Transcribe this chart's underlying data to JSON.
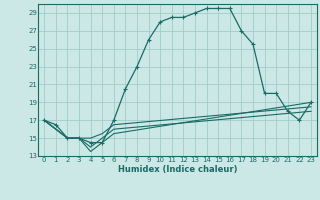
{
  "xlabel": "Humidex (Indice chaleur)",
  "xlim": [
    -0.5,
    23.5
  ],
  "ylim": [
    13,
    30
  ],
  "yticks": [
    13,
    15,
    17,
    19,
    21,
    23,
    25,
    27,
    29
  ],
  "xticks": [
    0,
    1,
    2,
    3,
    4,
    5,
    6,
    7,
    8,
    9,
    10,
    11,
    12,
    13,
    14,
    15,
    16,
    17,
    18,
    19,
    20,
    21,
    22,
    23
  ],
  "bg_color": "#cce8e6",
  "grid_color": "#a0ccca",
  "line_color": "#1a6b65",
  "curves": [
    {
      "x": [
        0,
        1,
        2,
        3,
        4,
        5,
        6,
        7,
        8,
        9,
        10,
        11,
        12,
        13,
        14,
        15,
        16,
        17,
        18,
        19,
        20,
        21,
        22,
        23
      ],
      "y": [
        17,
        16.5,
        15,
        15,
        14.5,
        14.5,
        17,
        20.5,
        23,
        26,
        28,
        28.5,
        28.5,
        29,
        29.5,
        29.5,
        29.5,
        27,
        25.5,
        20,
        20,
        18,
        17,
        19
      ]
    },
    {
      "x": [
        0,
        2,
        3,
        4,
        5,
        6,
        23
      ],
      "y": [
        17,
        15,
        15,
        13.5,
        14.5,
        15.5,
        19
      ]
    },
    {
      "x": [
        0,
        2,
        3,
        4,
        5,
        6,
        23
      ],
      "y": [
        17,
        15,
        15,
        14,
        15,
        16,
        18
      ]
    },
    {
      "x": [
        0,
        2,
        3,
        4,
        5,
        6,
        23
      ],
      "y": [
        17,
        15,
        15,
        15,
        15.5,
        16.5,
        18.5
      ]
    }
  ]
}
